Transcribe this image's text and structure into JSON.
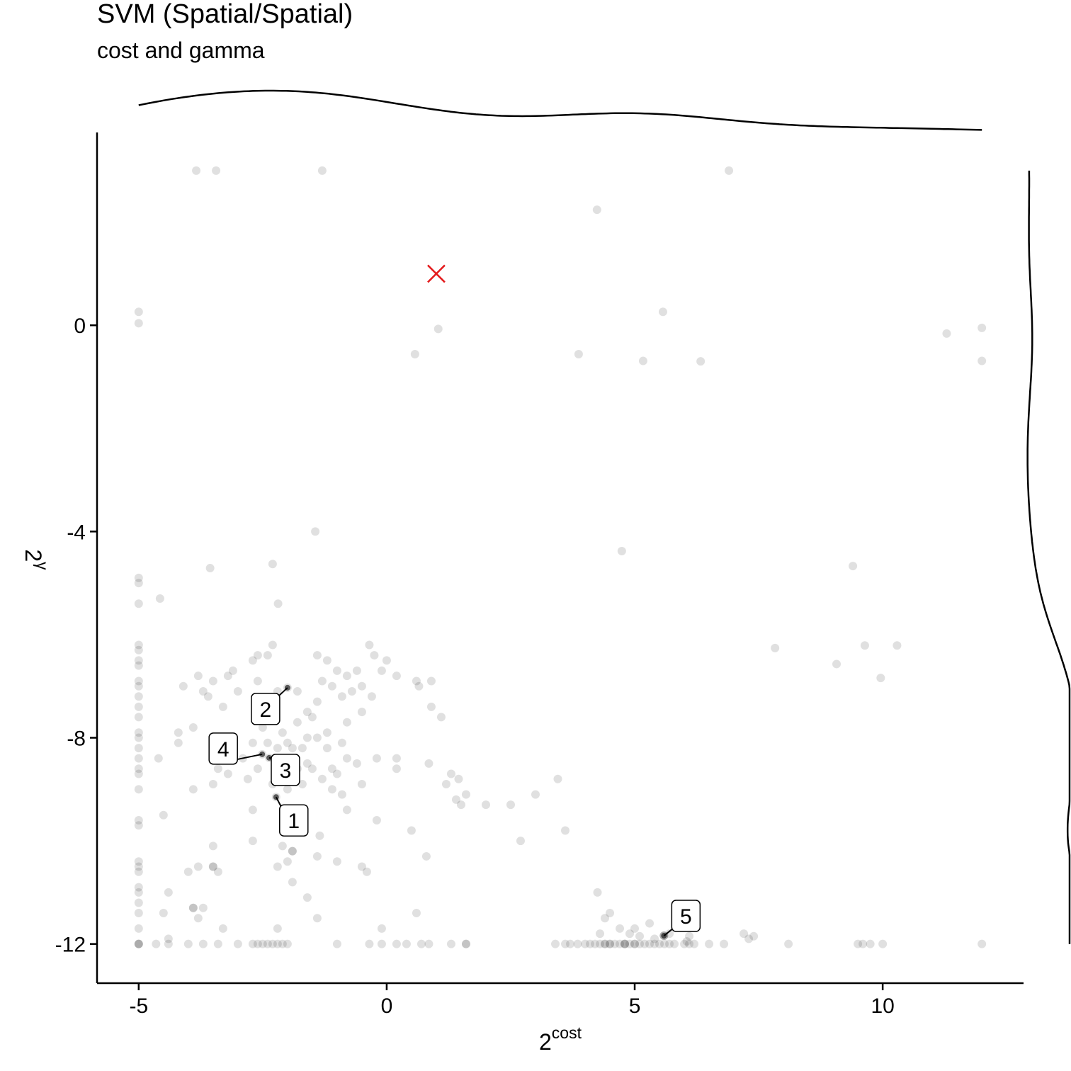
{
  "chart_data": {
    "type": "scatter",
    "title": "SVM (Spatial/Spatial)",
    "subtitle": "cost and gamma",
    "x_label": "2",
    "x_label_sup": "cost",
    "y_label": "2",
    "y_label_sup": "γ",
    "color": "#000000",
    "xlim": [
      -5.84,
      12.84
    ],
    "xticks": [
      -5,
      0,
      5,
      10
    ],
    "ylim": [
      -12.76,
      3.74
    ],
    "yticks": [
      -12,
      -8,
      -4,
      0
    ],
    "marginal_density": true,
    "highlight": {
      "x": 1,
      "y": 1,
      "color": "#e41a1c"
    },
    "annotations": [
      {
        "text": "1",
        "x": -2.23,
        "y": -9.15
      },
      {
        "text": "2",
        "x": -2.0,
        "y": -7.03
      },
      {
        "text": "3",
        "x": -2.37,
        "y": -8.39
      },
      {
        "text": "4",
        "x": -2.51,
        "y": -8.32
      },
      {
        "text": "5",
        "x": 5.59,
        "y": -11.84
      }
    ],
    "x": [
      -3.84,
      -3.44,
      -1.3,
      6.9,
      4.24,
      -5,
      -5,
      1.04,
      0.57,
      3.87,
      5.17,
      6.33,
      5.57,
      11.29,
      12,
      12,
      -1.44,
      4.74,
      9.4,
      -3.56,
      -2.3,
      -2.19,
      -4.57,
      7.83,
      9.07,
      9.64,
      10.29,
      9.96,
      -5,
      -5,
      -5,
      -5,
      -5,
      -5,
      -5,
      -5,
      -5,
      -5,
      -5,
      -5,
      -5,
      -5,
      -5,
      -5,
      -5,
      -5,
      -5,
      -5,
      -5,
      -5,
      -5,
      -5,
      -5,
      -5,
      -5,
      -5,
      -5,
      -2.3,
      -2.6,
      -2.7,
      -2.4,
      -3.1,
      -3.2,
      -3.5,
      -3.8,
      -4.1,
      -3.7,
      -3.6,
      -3.3,
      -3.0,
      -2.6,
      -2.2,
      -1.8,
      -1.4,
      -1.2,
      -1.0,
      -0.8,
      -0.6,
      -1.3,
      -1.1,
      -0.9,
      -0.7,
      -0.5,
      -0.3,
      -0.5,
      -0.35,
      -0.25,
      -0.1,
      0.0,
      0.2,
      0.6,
      0.65,
      0.9,
      0.9,
      1.1,
      -1.4,
      -1.6,
      -1.5,
      -1.8,
      -1.2,
      -0.8,
      -0.9,
      -0.8,
      -2.5,
      -2.1,
      -1.6,
      -1.4,
      -1.2,
      -2.7,
      -2.4,
      -2.2,
      -2.0,
      -1.9,
      -1.7,
      -1.6,
      -2.9,
      -2.6,
      -2.2,
      -1.8,
      -1.5,
      -1.1,
      -1.0,
      -3.4,
      -3.5,
      -3.2,
      -2.8,
      -2.3,
      -2.0,
      -1.7,
      -1.3,
      -1.1,
      -0.9,
      -0.8,
      -0.5,
      -0.6,
      -0.2,
      0.2,
      0.2,
      0.85,
      1.3,
      1.45,
      1.2,
      1.6,
      1.4,
      1.5,
      2.0,
      2.5,
      3.0,
      3.45,
      -4.2,
      -4.2,
      -3.9,
      -3.9,
      -4.6,
      -2.7,
      -0.2,
      3.6,
      0.5,
      2.7,
      -2.7,
      -2.1,
      -1.9,
      -1.9,
      -1.35,
      -1.4,
      -2.0,
      -1.0,
      0.8,
      -0.4,
      -0.5,
      -3.5,
      -3.5,
      -3.5,
      -3.4,
      -4.0,
      -3.8,
      -2.2,
      -1.9,
      -1.6,
      -4.4,
      -4.5,
      -3.9,
      -3.9,
      -3.8,
      -3.7,
      -1.4,
      -3.3,
      -2.2,
      -0.1,
      0.6,
      -4.5,
      -4.4,
      4.25,
      4.4,
      4.5,
      4.3,
      4.7,
      4.9,
      5.0,
      5.3,
      5.1,
      5.4,
      5.7,
      6.1,
      6.05,
      7.2,
      7.3,
      7.4,
      5.59,
      5.59,
      5.59,
      -2.23,
      -2.0,
      -2.37,
      -2.51,
      -5,
      -5,
      -5,
      -4.65,
      -4.4,
      -4,
      -3.7,
      -3.4,
      -3,
      -2.7,
      -2.6,
      -2.5,
      -2.4,
      -2.3,
      -2.2,
      -2.1,
      -2.0,
      -1.0,
      -0.35,
      -0.1,
      0.2,
      0.4,
      0.7,
      0.85,
      1.3,
      1.6,
      1.6,
      3.4,
      3.6,
      3.7,
      3.85,
      4.0,
      4.1,
      4.2,
      4.3,
      4.4,
      4.4,
      4.5,
      4.5,
      4.6,
      4.7,
      4.8,
      4.8,
      4.8,
      4.9,
      5.0,
      5.0,
      5.1,
      5.2,
      5.3,
      5.4,
      5.5,
      5.6,
      5.7,
      5.8,
      6.0,
      6.1,
      6.2,
      6.5,
      6.8,
      8.1,
      9.5,
      9.6,
      9.75,
      10.0,
      12.0
    ],
    "values": [
      3.0,
      3.0,
      3.0,
      3.0,
      2.24,
      0.26,
      0.04,
      -0.07,
      -0.56,
      -0.56,
      -0.69,
      -0.7,
      0.26,
      -0.16,
      -0.05,
      -0.69,
      -4.0,
      -4.38,
      -4.67,
      -4.71,
      -4.63,
      -5.4,
      -5.3,
      -6.26,
      -6.57,
      -6.21,
      -6.21,
      -6.84,
      -4.9,
      -5.0,
      -5.4,
      -6.2,
      -6.3,
      -6.5,
      -6.6,
      -6.9,
      -7.0,
      -7.2,
      -7.4,
      -7.6,
      -7.9,
      -8.0,
      -8.2,
      -8.4,
      -8.6,
      -8.7,
      -9.0,
      -9.6,
      -9.7,
      -10.4,
      -10.5,
      -10.6,
      -10.9,
      -11.0,
      -11.2,
      -11.4,
      -11.7,
      -6.2,
      -6.4,
      -6.5,
      -6.4,
      -6.7,
      -6.8,
      -6.9,
      -6.8,
      -7.0,
      -7.1,
      -7.2,
      -7.4,
      -7.1,
      -6.9,
      -7.1,
      -7.1,
      -6.4,
      -6.5,
      -6.7,
      -6.8,
      -6.7,
      -6.9,
      -7.0,
      -7.2,
      -7.1,
      -7.0,
      -7.2,
      -7.5,
      -6.2,
      -6.4,
      -6.7,
      -6.5,
      -6.8,
      -6.9,
      -7.0,
      -6.9,
      -7.4,
      -7.6,
      -7.3,
      -7.5,
      -7.6,
      -7.7,
      -7.9,
      -7.7,
      -8.1,
      -8.4,
      -7.8,
      -7.9,
      -8.0,
      -8.0,
      -8.2,
      -8.1,
      -8.1,
      -8.2,
      -8.1,
      -8.2,
      -8.2,
      -8.5,
      -8.4,
      -8.6,
      -8.5,
      -8.6,
      -8.6,
      -8.6,
      -8.7,
      -8.6,
      -8.9,
      -8.7,
      -8.8,
      -8.9,
      -9.0,
      -8.9,
      -8.8,
      -9.0,
      -9.1,
      -9.4,
      -8.9,
      -8.5,
      -8.4,
      -8.4,
      -8.6,
      -8.5,
      -8.7,
      -8.8,
      -8.9,
      -9.1,
      -9.2,
      -9.3,
      -9.3,
      -9.3,
      -9.1,
      -8.8,
      -7.9,
      -8.1,
      -7.8,
      -9.0,
      -8.4,
      -9.4,
      -9.6,
      -9.8,
      -9.8,
      -10.0,
      -10.0,
      -10.1,
      -10.2,
      -10.2,
      -9.9,
      -10.3,
      -10.4,
      -10.4,
      -10.3,
      -10.6,
      -10.5,
      -10.1,
      -10.5,
      -10.5,
      -10.6,
      -10.6,
      -10.5,
      -10.5,
      -10.8,
      -11.1,
      -11.0,
      -11.4,
      -11.3,
      -11.3,
      -11.5,
      -11.3,
      -11.5,
      -11.7,
      -11.7,
      -11.7,
      -11.4,
      -9.5,
      -11.9,
      -11.0,
      -11.5,
      -11.4,
      -11.8,
      -11.7,
      -11.8,
      -11.7,
      -11.6,
      -11.85,
      -11.9,
      -11.8,
      -11.85,
      -11.95,
      -11.8,
      -11.9,
      -11.85,
      -11.84,
      -11.84,
      -11.84,
      -9.15,
      -7.03,
      -8.39,
      -8.32,
      -12,
      -12,
      -12,
      -12,
      -12,
      -12,
      -12,
      -12,
      -12,
      -12,
      -12,
      -12,
      -12,
      -12,
      -12,
      -12,
      -12,
      -12,
      -12,
      -12,
      -12,
      -12,
      -12,
      -12,
      -12,
      -12,
      -12,
      -12,
      -12,
      -12,
      -12,
      -12,
      -12,
      -12,
      -12,
      -12,
      -12,
      -12,
      -12,
      -12,
      -12,
      -12,
      -12,
      -12,
      -12,
      -12,
      -12,
      -12,
      -12,
      -12,
      -12,
      -12,
      -12,
      -12,
      -12,
      -12,
      -12,
      -12,
      -12,
      -12,
      -12,
      -12,
      -12,
      -12,
      -12,
      -12
    ]
  }
}
